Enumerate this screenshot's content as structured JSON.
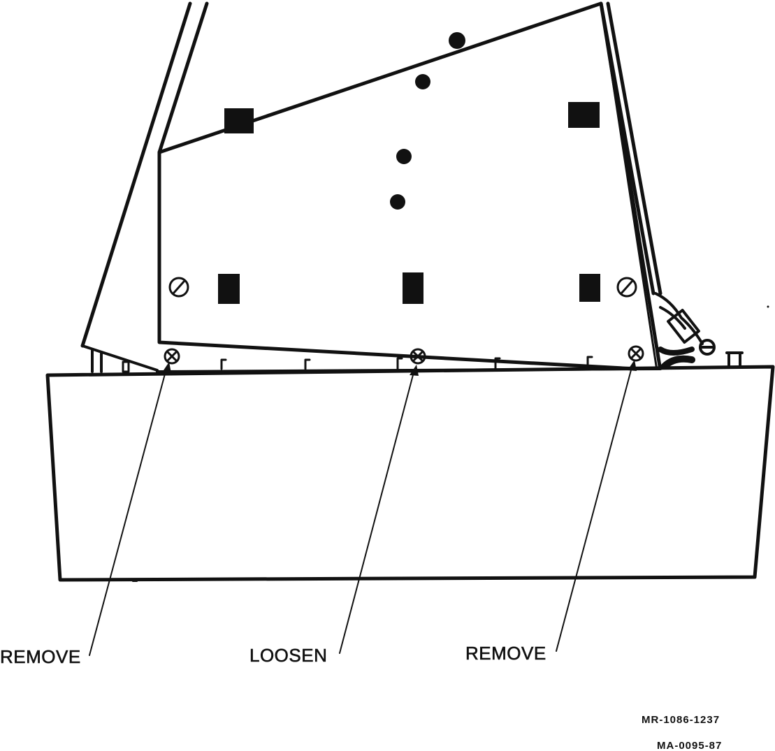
{
  "callouts": {
    "left": "REMOVE",
    "center": "LOOSEN",
    "right": "REMOVE"
  },
  "doc_numbers": {
    "primary": "MR-1086-1237",
    "secondary": "MA-0095-87"
  },
  "colors": {
    "ink": "#111111",
    "background": "#ffffff"
  }
}
